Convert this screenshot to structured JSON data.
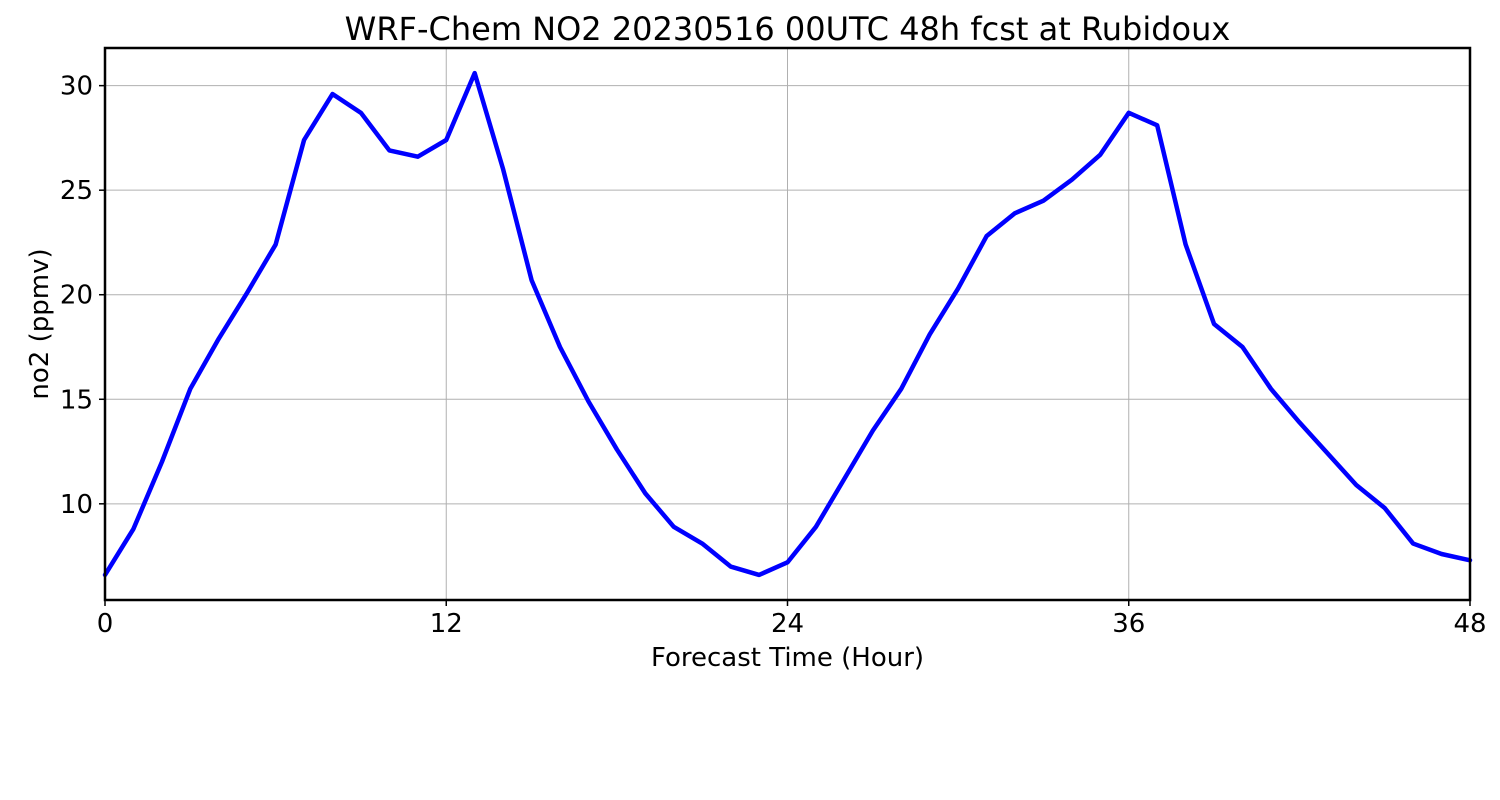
{
  "chart_data": {
    "type": "line",
    "title": "WRF-Chem NO2  20230516 00UTC 48h fcst at Rubidoux",
    "xlabel": "Forecast Time (Hour)",
    "ylabel": "no2  (ppmv)",
    "xlim": [
      0,
      48
    ],
    "ylim": [
      5.4,
      31.8
    ],
    "xticks": [
      0,
      12,
      24,
      36,
      48
    ],
    "yticks": [
      10,
      15,
      20,
      25,
      30
    ],
    "grid": true,
    "series": [
      {
        "color": "#0000ff",
        "x": [
          0,
          1,
          2,
          3,
          4,
          5,
          6,
          7,
          8,
          9,
          10,
          11,
          12,
          13,
          14,
          15,
          16,
          17,
          18,
          19,
          20,
          21,
          22,
          23,
          24,
          25,
          26,
          27,
          28,
          29,
          30,
          31,
          32,
          33,
          34,
          35,
          36,
          37,
          38,
          39,
          40,
          41,
          42,
          43,
          44,
          45,
          46,
          47,
          48
        ],
        "values": [
          6.6,
          8.8,
          12.0,
          15.5,
          17.9,
          20.1,
          22.4,
          27.4,
          29.6,
          28.7,
          26.9,
          26.6,
          27.4,
          30.6,
          26.0,
          20.7,
          17.5,
          14.9,
          12.6,
          10.5,
          8.9,
          8.1,
          7.0,
          6.6,
          7.2,
          8.9,
          11.2,
          13.5,
          15.5,
          18.1,
          20.3,
          22.8,
          23.9,
          24.5,
          25.5,
          26.7,
          28.7,
          28.1,
          22.4,
          18.6,
          17.5,
          15.5,
          13.9,
          12.4,
          10.9,
          9.8,
          8.1,
          7.6,
          7.3
        ]
      }
    ]
  }
}
